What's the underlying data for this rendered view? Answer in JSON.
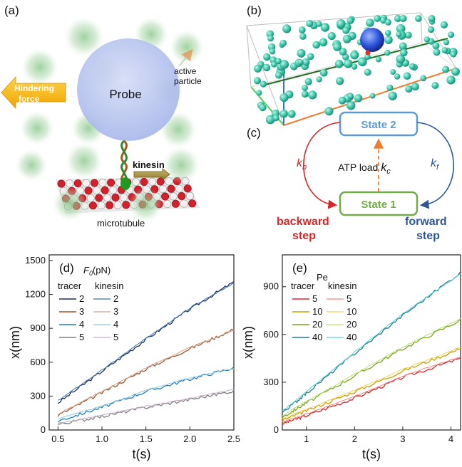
{
  "panels": {
    "a": {
      "label": "(a)",
      "probe": "Probe",
      "hindering_line1": "Hindering",
      "hindering_line2": "force",
      "active_line1": "active",
      "active_line2": "particle",
      "kinesin": "kinesin",
      "microtubule": "microtubule"
    },
    "b": {
      "label": "(b)"
    },
    "c": {
      "label": "(c)",
      "state2": "State 2",
      "state1": "State 1",
      "kb": "k",
      "kb_sub": "b",
      "kf": "k",
      "kf_sub": "f",
      "atp_text": "ATP load ",
      "kc": "k",
      "kc_sub": "c",
      "backward_line1": "backward",
      "backward_line2": "step",
      "forward_line1": "forward",
      "forward_line2": "step",
      "colors": {
        "state2": "#5b9bd5",
        "state1": "#70ad47",
        "kb": "#d62728",
        "kf": "#2f5597",
        "kc": "#ed7d31"
      }
    },
    "d": {
      "label": "(d)",
      "legend_title_main": "F",
      "legend_title_sub": "0",
      "legend_title_unit": "(pN)",
      "col1": "tracer",
      "col2": "kinesin"
    },
    "e": {
      "label": "(e)",
      "legend_title_main": "Pe",
      "col1": "tracer",
      "col2": "kinesin"
    }
  },
  "chart_data": [
    {
      "type": "line",
      "panel": "d",
      "xlabel": "t(s)",
      "ylabel": "x(nm)",
      "xlim": [
        0.4,
        2.5
      ],
      "ylim": [
        0,
        1550
      ],
      "xticks": [
        "0.5",
        "1.0",
        "1.5",
        "2.0",
        "2.5"
      ],
      "yticks": [
        "0",
        "300",
        "600",
        "900",
        "1200",
        "1500"
      ],
      "x": [
        0.5,
        1.0,
        1.5,
        2.0,
        2.5
      ],
      "series": [
        {
          "name": "2",
          "role": "tracer",
          "color": "#1f2d5c",
          "values": [
            240,
            520,
            800,
            1070,
            1310
          ]
        },
        {
          "name": "2",
          "role": "kinesin",
          "color": "#3a6fb0",
          "values": [
            260,
            530,
            810,
            1080,
            1300
          ]
        },
        {
          "name": "3",
          "role": "tracer",
          "color": "#a0522d",
          "values": [
            130,
            330,
            540,
            720,
            890
          ]
        },
        {
          "name": "3",
          "role": "kinesin",
          "color": "#d4a08a",
          "values": [
            140,
            340,
            550,
            730,
            880
          ]
        },
        {
          "name": "4",
          "role": "tracer",
          "color": "#1f7fb4",
          "values": [
            80,
            200,
            340,
            450,
            550
          ]
        },
        {
          "name": "4",
          "role": "kinesin",
          "color": "#8cc7e6",
          "values": [
            100,
            210,
            350,
            460,
            545
          ]
        },
        {
          "name": "5",
          "role": "tracer",
          "color": "#7f7f7f",
          "values": [
            50,
            120,
            200,
            270,
            345
          ]
        },
        {
          "name": "5",
          "role": "kinesin",
          "color": "#c9a8c9",
          "values": [
            60,
            130,
            210,
            280,
            360
          ]
        }
      ]
    },
    {
      "type": "line",
      "panel": "e",
      "xlabel": "t(s)",
      "ylabel": "x(nm)",
      "xlim": [
        0.5,
        4.2
      ],
      "ylim": [
        0,
        1100
      ],
      "xticks": [
        "1",
        "2",
        "3",
        "4"
      ],
      "yticks": [
        "0",
        "300",
        "600",
        "900"
      ],
      "x": [
        0.5,
        1.0,
        2.0,
        3.0,
        4.2
      ],
      "series": [
        {
          "name": "5",
          "role": "tracer",
          "color": "#d62728",
          "values": [
            40,
            90,
            200,
            330,
            450
          ]
        },
        {
          "name": "5",
          "role": "kinesin",
          "color": "#f08080",
          "values": [
            50,
            100,
            210,
            340,
            460
          ]
        },
        {
          "name": "10",
          "role": "tracer",
          "color": "#c8a000",
          "values": [
            60,
            120,
            240,
            370,
            510
          ]
        },
        {
          "name": "10",
          "role": "kinesin",
          "color": "#f0d060",
          "values": [
            70,
            130,
            250,
            380,
            520
          ]
        },
        {
          "name": "20",
          "role": "tracer",
          "color": "#7aa61a",
          "values": [
            80,
            170,
            340,
            510,
            690
          ]
        },
        {
          "name": "20",
          "role": "kinesin",
          "color": "#b8e07a",
          "values": [
            90,
            180,
            350,
            520,
            700
          ]
        },
        {
          "name": "40",
          "role": "tracer",
          "color": "#1a7a8a",
          "values": [
            110,
            230,
            480,
            720,
            990
          ]
        },
        {
          "name": "40",
          "role": "kinesin",
          "color": "#5fd0d0",
          "values": [
            120,
            240,
            490,
            730,
            980
          ]
        }
      ]
    }
  ]
}
